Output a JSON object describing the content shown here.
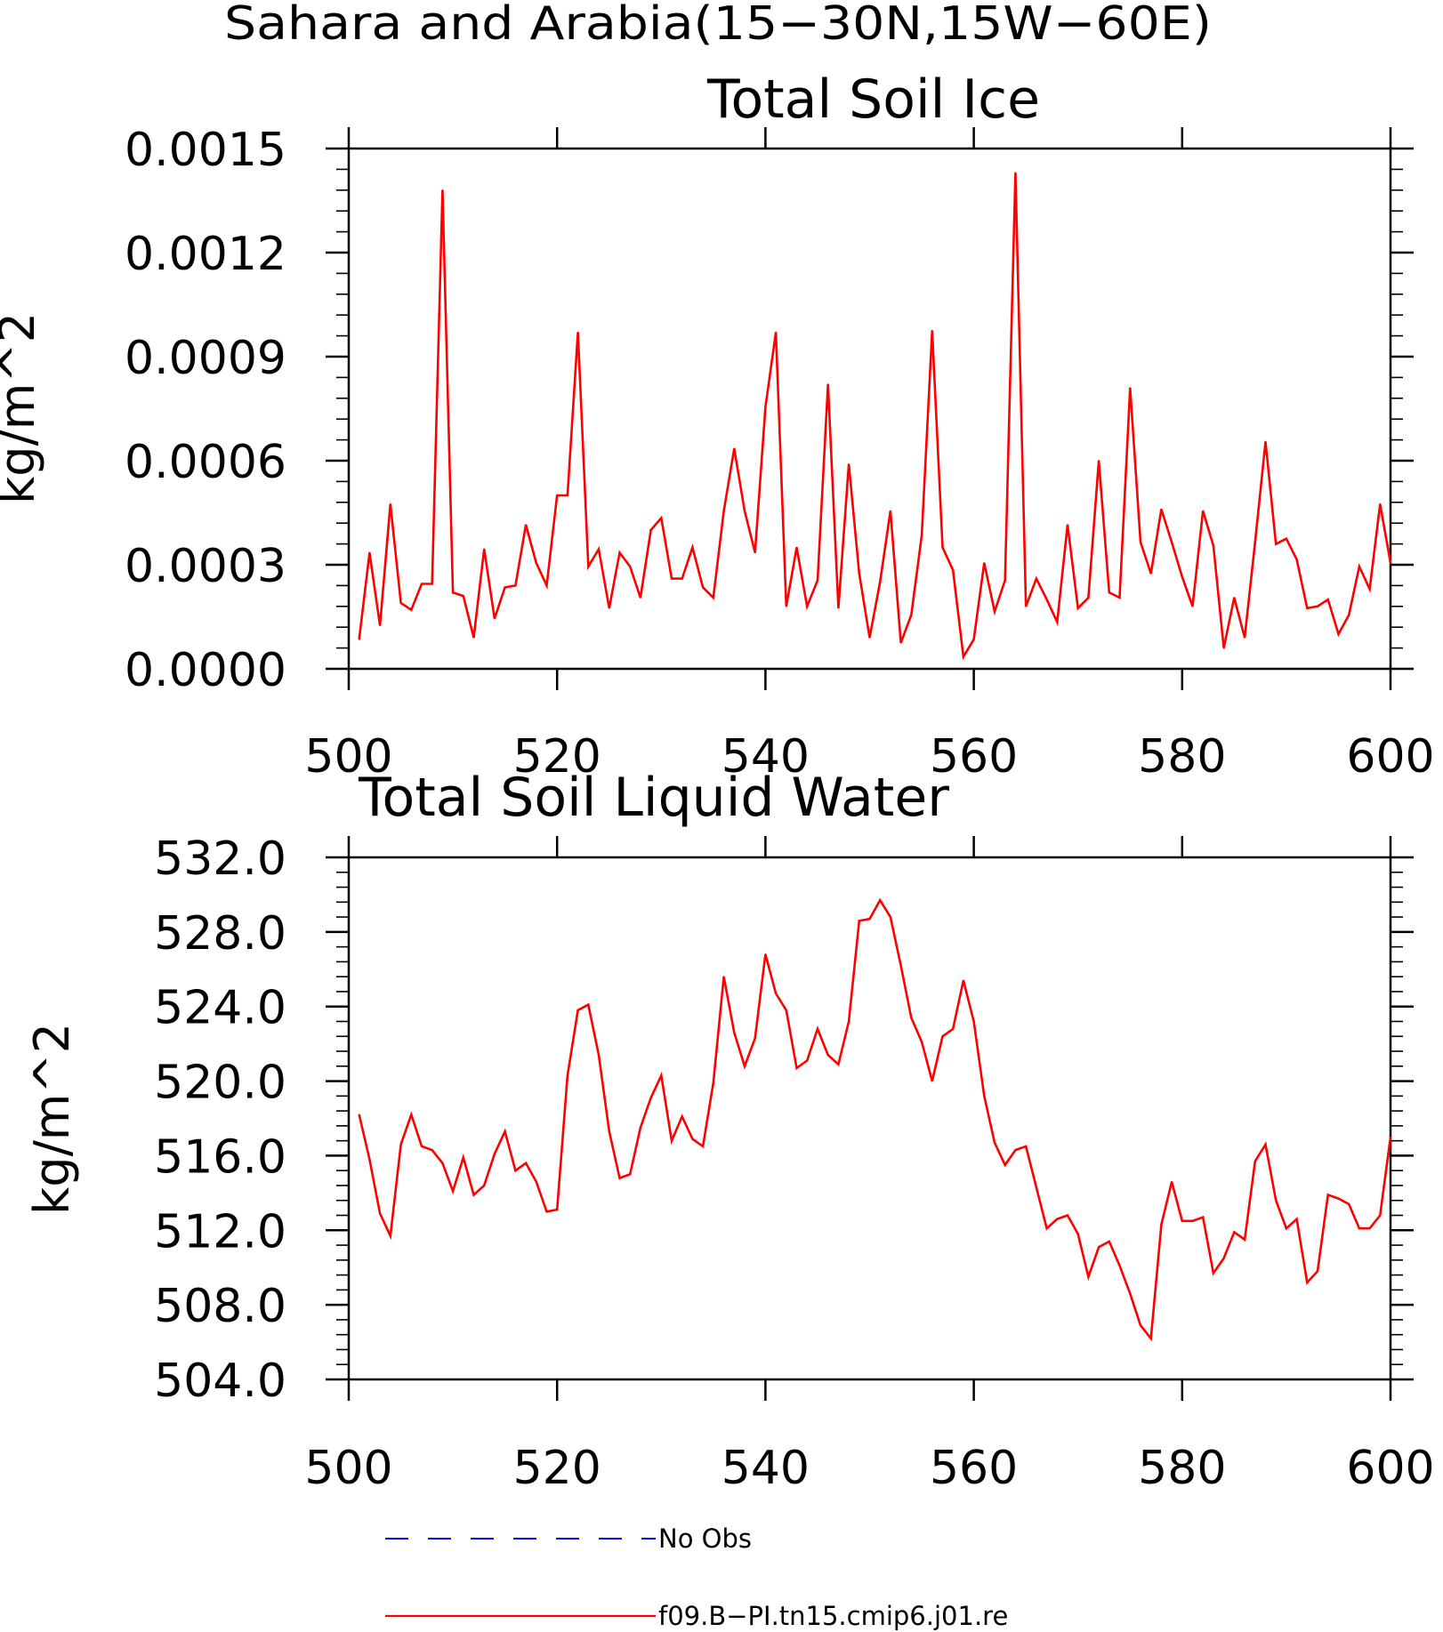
{
  "figure_title": "Sahara and Arabia(15−30N,15W−60E)",
  "legend": [
    {
      "label": "No Obs",
      "color": "#0000ff",
      "style": "dashed"
    },
    {
      "label": "f09.B−PI.tn15.cmip6.j01.re",
      "color": "#ff0000",
      "style": "solid"
    }
  ],
  "chart_data": [
    {
      "type": "line",
      "title": "Total Soil Ice",
      "xlabel": "",
      "ylabel": "kg/m^2",
      "xlim": [
        500,
        600
      ],
      "ylim": [
        0,
        0.0015
      ],
      "xticks": [
        500,
        520,
        540,
        560,
        580,
        600
      ],
      "xtick_labels": [
        "500",
        "520",
        "540",
        "560",
        "580",
        "600"
      ],
      "yticks": [
        0,
        0.0003,
        0.0006,
        0.0009,
        0.0012,
        0.0015
      ],
      "ytick_labels": [
        "0.0000",
        "0.0003",
        "0.0006",
        "0.0009",
        "0.0012",
        "0.0015"
      ],
      "x_start": 501,
      "series": [
        {
          "name": "f09.B−PI.tn15.cmip6.j01.re",
          "color": "#ff0000",
          "values": [
            8.5e-05,
            0.000335,
            0.000125,
            0.000475,
            0.00019,
            0.00017,
            0.000245,
            0.000245,
            0.00138,
            0.00022,
            0.00021,
            9e-05,
            0.000345,
            0.000145,
            0.000235,
            0.00024,
            0.000415,
            0.000305,
            0.00024,
            0.0005,
            0.0005,
            0.00097,
            0.000295,
            0.000345,
            0.000175,
            0.000335,
            0.000295,
            0.000205,
            0.0004,
            0.000435,
            0.00026,
            0.00026,
            0.00035,
            0.000235,
            0.000205,
            0.000455,
            0.000635,
            0.000455,
            0.000335,
            0.000755,
            0.00097,
            0.00018,
            0.00035,
            0.00018,
            0.000255,
            0.00082,
            0.000175,
            0.00059,
            0.000275,
            9e-05,
            0.00025,
            0.000455,
            7.5e-05,
            0.000155,
            0.000385,
            0.000975,
            0.00035,
            0.000285,
            3.5e-05,
            8.5e-05,
            0.000305,
            0.000165,
            0.000255,
            0.00143,
            0.00018,
            0.00026,
            0.0002,
            0.000135,
            0.000415,
            0.000175,
            0.000205,
            0.0006,
            0.00022,
            0.000205,
            0.00081,
            0.000365,
            0.000275,
            0.00046,
            0.000365,
            0.000265,
            0.00018,
            0.000455,
            0.000355,
            6e-05,
            0.000205,
            9e-05,
            0.000365,
            0.000655,
            0.00036,
            0.000375,
            0.000315,
            0.000175,
            0.00018,
            0.0002,
            0.0001,
            0.000155,
            0.000295,
            0.00023,
            0.000475,
            0.000305
          ]
        }
      ]
    },
    {
      "type": "line",
      "title": "Total Soil Liquid Water",
      "xlabel": "",
      "ylabel": "kg/m^2",
      "xlim": [
        500,
        600
      ],
      "ylim": [
        504,
        532
      ],
      "xticks": [
        500,
        520,
        540,
        560,
        580,
        600
      ],
      "xtick_labels": [
        "500",
        "520",
        "540",
        "560",
        "580",
        "600"
      ],
      "yticks": [
        504,
        508,
        512,
        516,
        520,
        524,
        528,
        532
      ],
      "ytick_labels": [
        "504.0",
        "508.0",
        "512.0",
        "516.0",
        "520.0",
        "524.0",
        "528.0",
        "532.0"
      ],
      "x_start": 501,
      "series": [
        {
          "name": "f09.B−PI.tn15.cmip6.j01.re",
          "color": "#ff0000",
          "values": [
            518.2,
            515.8,
            512.9,
            511.7,
            516.6,
            518.2,
            516.5,
            516.3,
            515.6,
            514.1,
            515.9,
            513.9,
            514.4,
            516.1,
            517.3,
            515.2,
            515.6,
            514.6,
            513.0,
            513.1,
            520.3,
            523.8,
            524.1,
            521.4,
            517.3,
            514.8,
            515.0,
            517.5,
            519.1,
            520.3,
            516.8,
            518.1,
            516.9,
            516.5,
            519.9,
            525.6,
            522.6,
            520.8,
            522.3,
            526.8,
            524.7,
            523.8,
            520.7,
            521.1,
            522.8,
            521.4,
            520.9,
            523.2,
            528.6,
            528.7,
            529.7,
            528.8,
            526.2,
            523.4,
            522.1,
            520.0,
            522.4,
            522.8,
            525.4,
            523.2,
            519.2,
            516.7,
            515.5,
            516.3,
            516.5,
            514.3,
            512.1,
            512.6,
            512.8,
            511.8,
            509.5,
            511.1,
            511.4,
            510.1,
            508.6,
            506.9,
            506.2,
            512.3,
            514.6,
            512.5,
            512.5,
            512.7,
            509.7,
            510.5,
            511.9,
            511.5,
            515.7,
            516.6,
            513.6,
            512.1,
            512.6,
            509.2,
            509.8,
            513.9,
            513.7,
            513.4,
            512.1,
            512.1,
            512.8,
            517.0
          ]
        }
      ]
    }
  ]
}
